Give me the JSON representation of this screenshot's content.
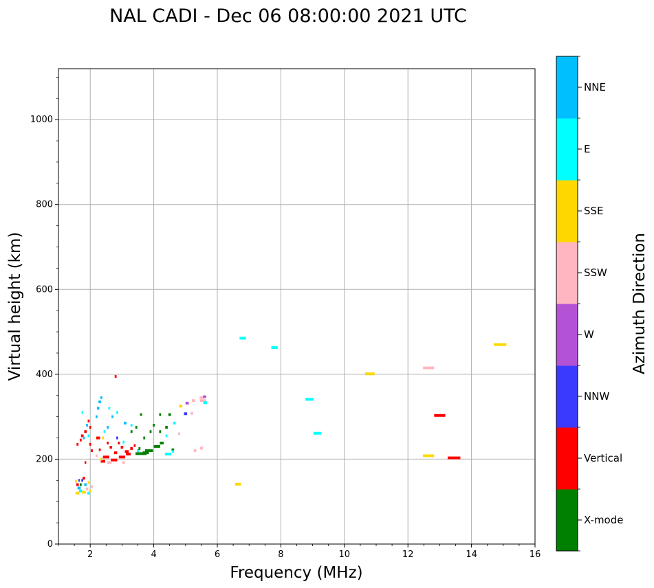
{
  "chart_data": {
    "type": "scatter",
    "title": "NAL CADI - Dec 06 08:00:00 2021 UTC",
    "xlabel": "Frequency (MHz)",
    "ylabel": "Virtual height (km)",
    "xlim": [
      1,
      16
    ],
    "ylim": [
      0,
      1120
    ],
    "xticks": [
      2,
      4,
      6,
      8,
      10,
      12,
      14,
      16
    ],
    "yticks": [
      0,
      200,
      400,
      600,
      800,
      1000
    ],
    "grid": true,
    "colorbar": {
      "label": "Azimuth Direction",
      "categories": [
        "X-mode",
        "Vertical",
        "NNW",
        "W",
        "SSW",
        "SSE",
        "E",
        "NNE"
      ],
      "colors": [
        "#008000",
        "#ff0000",
        "#3a3aff",
        "#b452d6",
        "#ffb6c1",
        "#ffd700",
        "#00ffff",
        "#00bfff"
      ]
    },
    "points": [
      {
        "x": 2.8,
        "y": 395,
        "w": 0.06,
        "c": "Vertical"
      },
      {
        "x": 2.35,
        "y": 345,
        "w": 0.06,
        "c": "NNE"
      },
      {
        "x": 2.3,
        "y": 335,
        "w": 0.08,
        "c": "NNE"
      },
      {
        "x": 2.25,
        "y": 320,
        "w": 0.08,
        "c": "NNE"
      },
      {
        "x": 2.2,
        "y": 300,
        "w": 0.06,
        "c": "NNE"
      },
      {
        "x": 2.6,
        "y": 320,
        "w": 0.06,
        "c": "E"
      },
      {
        "x": 2.7,
        "y": 300,
        "w": 0.06,
        "c": "NNE"
      },
      {
        "x": 2.85,
        "y": 310,
        "w": 0.06,
        "c": "E"
      },
      {
        "x": 3.1,
        "y": 285,
        "w": 0.08,
        "c": "NNE"
      },
      {
        "x": 3.3,
        "y": 280,
        "w": 0.06,
        "c": "E"
      },
      {
        "x": 2.55,
        "y": 275,
        "w": 0.06,
        "c": "NNE"
      },
      {
        "x": 2.45,
        "y": 265,
        "w": 0.06,
        "c": "E"
      },
      {
        "x": 1.95,
        "y": 290,
        "w": 0.06,
        "c": "Vertical"
      },
      {
        "x": 2.0,
        "y": 275,
        "w": 0.06,
        "c": "Vertical"
      },
      {
        "x": 1.85,
        "y": 265,
        "w": 0.08,
        "c": "Vertical"
      },
      {
        "x": 1.75,
        "y": 255,
        "w": 0.08,
        "c": "Vertical"
      },
      {
        "x": 1.7,
        "y": 245,
        "w": 0.06,
        "c": "Vertical"
      },
      {
        "x": 1.8,
        "y": 250,
        "w": 0.06,
        "c": "NNE"
      },
      {
        "x": 1.9,
        "y": 280,
        "w": 0.06,
        "c": "NNE"
      },
      {
        "x": 1.95,
        "y": 255,
        "w": 0.06,
        "c": "E"
      },
      {
        "x": 1.6,
        "y": 235,
        "w": 0.06,
        "c": "Vertical"
      },
      {
        "x": 1.75,
        "y": 310,
        "w": 0.05,
        "c": "E"
      },
      {
        "x": 2.25,
        "y": 250,
        "w": 0.12,
        "c": "Vertical"
      },
      {
        "x": 2.4,
        "y": 250,
        "w": 0.06,
        "c": "SSE"
      },
      {
        "x": 2.0,
        "y": 235,
        "w": 0.06,
        "c": "Vertical"
      },
      {
        "x": 2.05,
        "y": 220,
        "w": 0.06,
        "c": "Vertical"
      },
      {
        "x": 2.3,
        "y": 222,
        "w": 0.06,
        "c": "Vertical"
      },
      {
        "x": 2.55,
        "y": 238,
        "w": 0.06,
        "c": "Vertical"
      },
      {
        "x": 2.65,
        "y": 228,
        "w": 0.08,
        "c": "Vertical"
      },
      {
        "x": 2.8,
        "y": 215,
        "w": 0.1,
        "c": "Vertical"
      },
      {
        "x": 2.9,
        "y": 238,
        "w": 0.06,
        "c": "Vertical"
      },
      {
        "x": 3.0,
        "y": 228,
        "w": 0.08,
        "c": "Vertical"
      },
      {
        "x": 3.15,
        "y": 218,
        "w": 0.12,
        "c": "Vertical"
      },
      {
        "x": 3.3,
        "y": 225,
        "w": 0.08,
        "c": "Vertical"
      },
      {
        "x": 3.4,
        "y": 232,
        "w": 0.06,
        "c": "Vertical"
      },
      {
        "x": 2.5,
        "y": 205,
        "w": 0.2,
        "c": "Vertical"
      },
      {
        "x": 2.75,
        "y": 198,
        "w": 0.2,
        "c": "Vertical"
      },
      {
        "x": 3.0,
        "y": 205,
        "w": 0.2,
        "c": "Vertical"
      },
      {
        "x": 3.2,
        "y": 212,
        "w": 0.15,
        "c": "Vertical"
      },
      {
        "x": 2.4,
        "y": 195,
        "w": 0.14,
        "c": "Vertical"
      },
      {
        "x": 2.6,
        "y": 192,
        "w": 0.14,
        "c": "SSW"
      },
      {
        "x": 2.35,
        "y": 200,
        "w": 0.06,
        "c": "SSE"
      },
      {
        "x": 2.2,
        "y": 208,
        "w": 0.06,
        "c": "SSW"
      },
      {
        "x": 3.05,
        "y": 192,
        "w": 0.08,
        "c": "SSW"
      },
      {
        "x": 2.85,
        "y": 250,
        "w": 0.06,
        "c": "NNW"
      },
      {
        "x": 3.05,
        "y": 240,
        "w": 0.06,
        "c": "E"
      },
      {
        "x": 3.5,
        "y": 220,
        "w": 0.06,
        "c": "E"
      },
      {
        "x": 3.6,
        "y": 213,
        "w": 0.35,
        "c": "X-mode"
      },
      {
        "x": 3.85,
        "y": 220,
        "w": 0.25,
        "c": "X-mode"
      },
      {
        "x": 4.1,
        "y": 230,
        "w": 0.2,
        "c": "X-mode"
      },
      {
        "x": 4.25,
        "y": 238,
        "w": 0.12,
        "c": "X-mode"
      },
      {
        "x": 3.75,
        "y": 215,
        "w": 0.2,
        "c": "X-mode"
      },
      {
        "x": 3.55,
        "y": 225,
        "w": 0.06,
        "c": "X-mode"
      },
      {
        "x": 3.7,
        "y": 250,
        "w": 0.06,
        "c": "X-mode"
      },
      {
        "x": 3.9,
        "y": 265,
        "w": 0.06,
        "c": "X-mode"
      },
      {
        "x": 4.0,
        "y": 280,
        "w": 0.06,
        "c": "X-mode"
      },
      {
        "x": 4.2,
        "y": 265,
        "w": 0.06,
        "c": "X-mode"
      },
      {
        "x": 4.4,
        "y": 275,
        "w": 0.08,
        "c": "X-mode"
      },
      {
        "x": 4.5,
        "y": 305,
        "w": 0.08,
        "c": "X-mode"
      },
      {
        "x": 4.2,
        "y": 305,
        "w": 0.06,
        "c": "X-mode"
      },
      {
        "x": 3.6,
        "y": 305,
        "w": 0.06,
        "c": "X-mode"
      },
      {
        "x": 3.3,
        "y": 265,
        "w": 0.06,
        "c": "X-mode"
      },
      {
        "x": 3.45,
        "y": 275,
        "w": 0.06,
        "c": "X-mode"
      },
      {
        "x": 4.6,
        "y": 222,
        "w": 0.08,
        "c": "X-mode"
      },
      {
        "x": 4.45,
        "y": 212,
        "w": 0.2,
        "c": "E"
      },
      {
        "x": 4.6,
        "y": 218,
        "w": 0.06,
        "c": "E"
      },
      {
        "x": 4.4,
        "y": 255,
        "w": 0.06,
        "c": "E"
      },
      {
        "x": 4.65,
        "y": 285,
        "w": 0.08,
        "c": "E"
      },
      {
        "x": 4.8,
        "y": 260,
        "w": 0.06,
        "c": "SSW"
      },
      {
        "x": 4.85,
        "y": 325,
        "w": 0.1,
        "c": "SSE"
      },
      {
        "x": 5.05,
        "y": 332,
        "w": 0.1,
        "c": "W"
      },
      {
        "x": 5.0,
        "y": 307,
        "w": 0.1,
        "c": "NNW"
      },
      {
        "x": 5.2,
        "y": 308,
        "w": 0.08,
        "c": "SSW"
      },
      {
        "x": 5.25,
        "y": 338,
        "w": 0.1,
        "c": "SSW"
      },
      {
        "x": 5.5,
        "y": 345,
        "w": 0.12,
        "c": "SSW"
      },
      {
        "x": 5.55,
        "y": 338,
        "w": 0.2,
        "c": "SSW"
      },
      {
        "x": 5.62,
        "y": 333,
        "w": 0.12,
        "c": "E"
      },
      {
        "x": 5.6,
        "y": 347,
        "w": 0.1,
        "c": "W"
      },
      {
        "x": 5.5,
        "y": 226,
        "w": 0.1,
        "c": "SSW"
      },
      {
        "x": 5.3,
        "y": 220,
        "w": 0.08,
        "c": "SSW"
      },
      {
        "x": 1.55,
        "y": 148,
        "w": 0.06,
        "c": "SSE"
      },
      {
        "x": 1.6,
        "y": 140,
        "w": 0.08,
        "c": "Vertical"
      },
      {
        "x": 1.65,
        "y": 132,
        "w": 0.1,
        "c": "NNE"
      },
      {
        "x": 1.7,
        "y": 125,
        "w": 0.1,
        "c": "E"
      },
      {
        "x": 1.6,
        "y": 120,
        "w": 0.12,
        "c": "SSE"
      },
      {
        "x": 1.75,
        "y": 150,
        "w": 0.06,
        "c": "NNW"
      },
      {
        "x": 1.8,
        "y": 155,
        "w": 0.08,
        "c": "Vertical"
      },
      {
        "x": 1.85,
        "y": 140,
        "w": 0.08,
        "c": "NNE"
      },
      {
        "x": 1.9,
        "y": 130,
        "w": 0.08,
        "c": "SSW"
      },
      {
        "x": 1.8,
        "y": 122,
        "w": 0.12,
        "c": "SSE"
      },
      {
        "x": 1.95,
        "y": 120,
        "w": 0.08,
        "c": "E"
      },
      {
        "x": 1.95,
        "y": 145,
        "w": 0.06,
        "c": "SSE"
      },
      {
        "x": 2.05,
        "y": 135,
        "w": 0.06,
        "c": "SSW"
      },
      {
        "x": 2.0,
        "y": 125,
        "w": 0.06,
        "c": "SSE"
      },
      {
        "x": 1.7,
        "y": 140,
        "w": 0.06,
        "c": "X-mode"
      },
      {
        "x": 1.65,
        "y": 150,
        "w": 0.05,
        "c": "NNW"
      },
      {
        "x": 1.85,
        "y": 192,
        "w": 0.05,
        "c": "Vertical"
      },
      {
        "x": 6.8,
        "y": 485,
        "w": 0.2,
        "c": "E"
      },
      {
        "x": 7.8,
        "y": 463,
        "w": 0.2,
        "c": "E"
      },
      {
        "x": 8.9,
        "y": 341,
        "w": 0.25,
        "c": "E"
      },
      {
        "x": 9.15,
        "y": 261,
        "w": 0.25,
        "c": "E"
      },
      {
        "x": 6.65,
        "y": 141,
        "w": 0.18,
        "c": "SSE"
      },
      {
        "x": 10.8,
        "y": 401,
        "w": 0.3,
        "c": "SSE"
      },
      {
        "x": 12.65,
        "y": 415,
        "w": 0.35,
        "c": "SSW"
      },
      {
        "x": 13.0,
        "y": 303,
        "w": 0.35,
        "c": "Vertical"
      },
      {
        "x": 12.65,
        "y": 208,
        "w": 0.35,
        "c": "SSE"
      },
      {
        "x": 13.45,
        "y": 203,
        "w": 0.4,
        "c": "Vertical"
      },
      {
        "x": 14.9,
        "y": 470,
        "w": 0.4,
        "c": "SSE"
      }
    ]
  }
}
